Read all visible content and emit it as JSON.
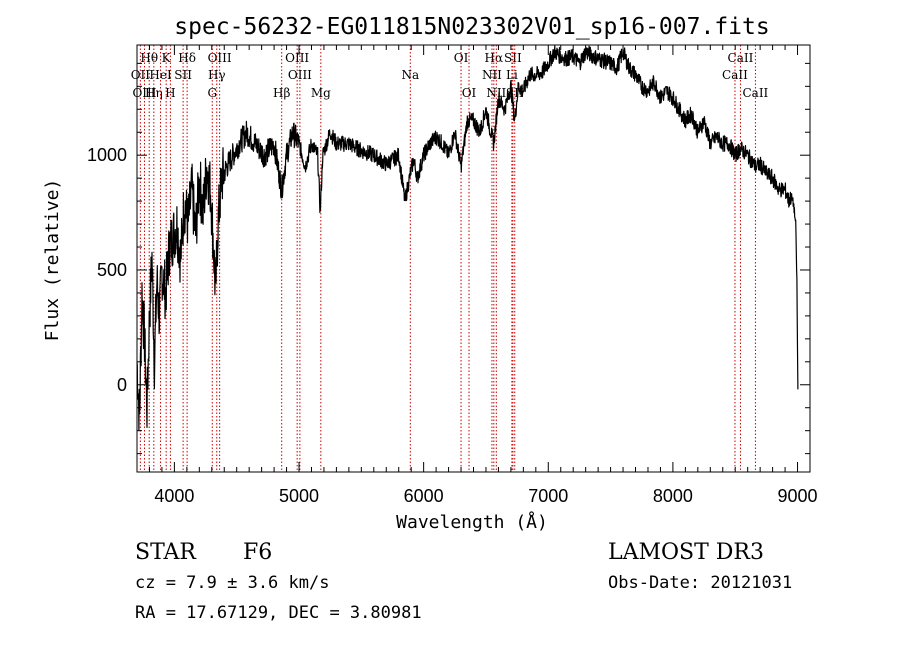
{
  "chart_data": {
    "type": "line",
    "title": "spec-56232-EG011815N023302V01_sp16-007.fits",
    "xlabel": "Wavelength (Å)",
    "ylabel": "Flux (relative)",
    "xlim": [
      3700,
      9100
    ],
    "ylim": [
      -380,
      1480
    ],
    "xticks": [
      4000,
      5000,
      6000,
      7000,
      8000,
      9000
    ],
    "xtick_labels": [
      "4000",
      "5000",
      "6000",
      "7000",
      "8000",
      "9000"
    ],
    "yticks": [
      0,
      500,
      1000
    ],
    "ytick_labels": [
      "0",
      "500",
      "1000"
    ],
    "series": [
      {
        "name": "flux",
        "x": [
          3700,
          3720,
          3740,
          3760,
          3780,
          3800,
          3820,
          3840,
          3860,
          3880,
          3900,
          3930,
          3960,
          3990,
          4020,
          4050,
          4080,
          4110,
          4140,
          4170,
          4200,
          4230,
          4260,
          4290,
          4310,
          4330,
          4350,
          4380,
          4420,
          4470,
          4520,
          4580,
          4650,
          4720,
          4800,
          4861,
          4900,
          4950,
          5000,
          5050,
          5100,
          5150,
          5170,
          5190,
          5250,
          5300,
          5400,
          5500,
          5600,
          5700,
          5800,
          5850,
          5893,
          5920,
          5950,
          6000,
          6050,
          6100,
          6150,
          6200,
          6250,
          6300,
          6350,
          6400,
          6450,
          6500,
          6530,
          6563,
          6600,
          6650,
          6700,
          6730,
          6760,
          6800,
          6850,
          6900,
          6950,
          7000,
          7050,
          7100,
          7150,
          7200,
          7250,
          7300,
          7400,
          7500,
          7550,
          7600,
          7650,
          7700,
          7750,
          7800,
          7850,
          7900,
          7950,
          8000,
          8050,
          8100,
          8150,
          8200,
          8250,
          8300,
          8350,
          8400,
          8450,
          8500,
          8542,
          8600,
          8662,
          8700,
          8750,
          8800,
          8850,
          8900,
          8930,
          8950,
          8970,
          8985,
          8995,
          9000,
          9003
        ],
        "y": [
          100,
          -150,
          400,
          200,
          -100,
          300,
          550,
          100,
          450,
          300,
          500,
          400,
          600,
          650,
          700,
          550,
          800,
          700,
          850,
          650,
          900,
          750,
          950,
          850,
          650,
          400,
          700,
          900,
          950,
          1000,
          1050,
          1100,
          1050,
          1000,
          1050,
          850,
          1000,
          1100,
          1050,
          950,
          1050,
          1000,
          750,
          1000,
          1100,
          1050,
          1050,
          1020,
          1000,
          960,
          1000,
          800,
          920,
          980,
          900,
          1000,
          1050,
          1080,
          1050,
          1000,
          1100,
          950,
          1150,
          1150,
          1100,
          1200,
          1120,
          1050,
          1250,
          1200,
          1300,
          1150,
          1300,
          1280,
          1350,
          1350,
          1360,
          1400,
          1450,
          1430,
          1420,
          1430,
          1400,
          1450,
          1420,
          1400,
          1380,
          1450,
          1380,
          1350,
          1300,
          1280,
          1320,
          1250,
          1280,
          1250,
          1200,
          1150,
          1180,
          1100,
          1150,
          1050,
          1080,
          1050,
          1050,
          1000,
          1030,
          1000,
          950,
          960,
          920,
          900,
          850,
          850,
          800,
          820,
          780,
          700,
          450,
          150,
          -20
        ]
      }
    ],
    "line_markers": [
      {
        "label": "Hθ",
        "x": 3798,
        "row": 1
      },
      {
        "label": "OII",
        "x": 3727,
        "row": 2
      },
      {
        "label": "OIII",
        "x": 3760,
        "row": 3
      },
      {
        "label": "Hη",
        "x": 3835,
        "row": 3
      },
      {
        "label": "K",
        "x": 3934,
        "row": 1
      },
      {
        "label": "HeI",
        "x": 3889,
        "row": 2
      },
      {
        "label": "H",
        "x": 3968,
        "row": 3
      },
      {
        "label": "SII",
        "x": 4070,
        "row": 2
      },
      {
        "label": "Hδ",
        "x": 4102,
        "row": 1
      },
      {
        "label": "OIII",
        "x": 4363,
        "row": 1
      },
      {
        "label": "Hγ",
        "x": 4340,
        "row": 2
      },
      {
        "label": "G",
        "x": 4304,
        "row": 3
      },
      {
        "label": "Hβ",
        "x": 4861,
        "row": 3
      },
      {
        "label": "OIII",
        "x": 4985,
        "row": 1
      },
      {
        "label": "OIII",
        "x": 5007,
        "row": 2
      },
      {
        "label": "Mg",
        "x": 5175,
        "row": 3
      },
      {
        "label": "Na",
        "x": 5893,
        "row": 2
      },
      {
        "label": "OI",
        "x": 6300,
        "row": 1
      },
      {
        "label": "OI",
        "x": 6364,
        "row": 3
      },
      {
        "label": "Hα",
        "x": 6563,
        "row": 1
      },
      {
        "label": "NII",
        "x": 6548,
        "row": 2
      },
      {
        "label": "NII",
        "x": 6583,
        "row": 3
      },
      {
        "label": "SII",
        "x": 6716,
        "row": 1
      },
      {
        "label": "Li",
        "x": 6708,
        "row": 2
      },
      {
        "label": "SII",
        "x": 6731,
        "row": 3
      },
      {
        "label": "CaII",
        "x": 8542,
        "row": 1
      },
      {
        "label": "CaII",
        "x": 8498,
        "row": 2
      },
      {
        "label": "CaII",
        "x": 8662,
        "row": 3
      }
    ]
  },
  "info": {
    "class": "STAR",
    "subclass": "F6",
    "survey": "LAMOST DR3",
    "cz": "cz = 7.9 ± 3.6 km/s",
    "obs_date": "Obs-Date: 20121031",
    "coords": "RA =  17.67129, DEC =   3.80981"
  },
  "colors": {
    "line": "#000000",
    "marker": "#cc0000",
    "axis": "#000000"
  }
}
